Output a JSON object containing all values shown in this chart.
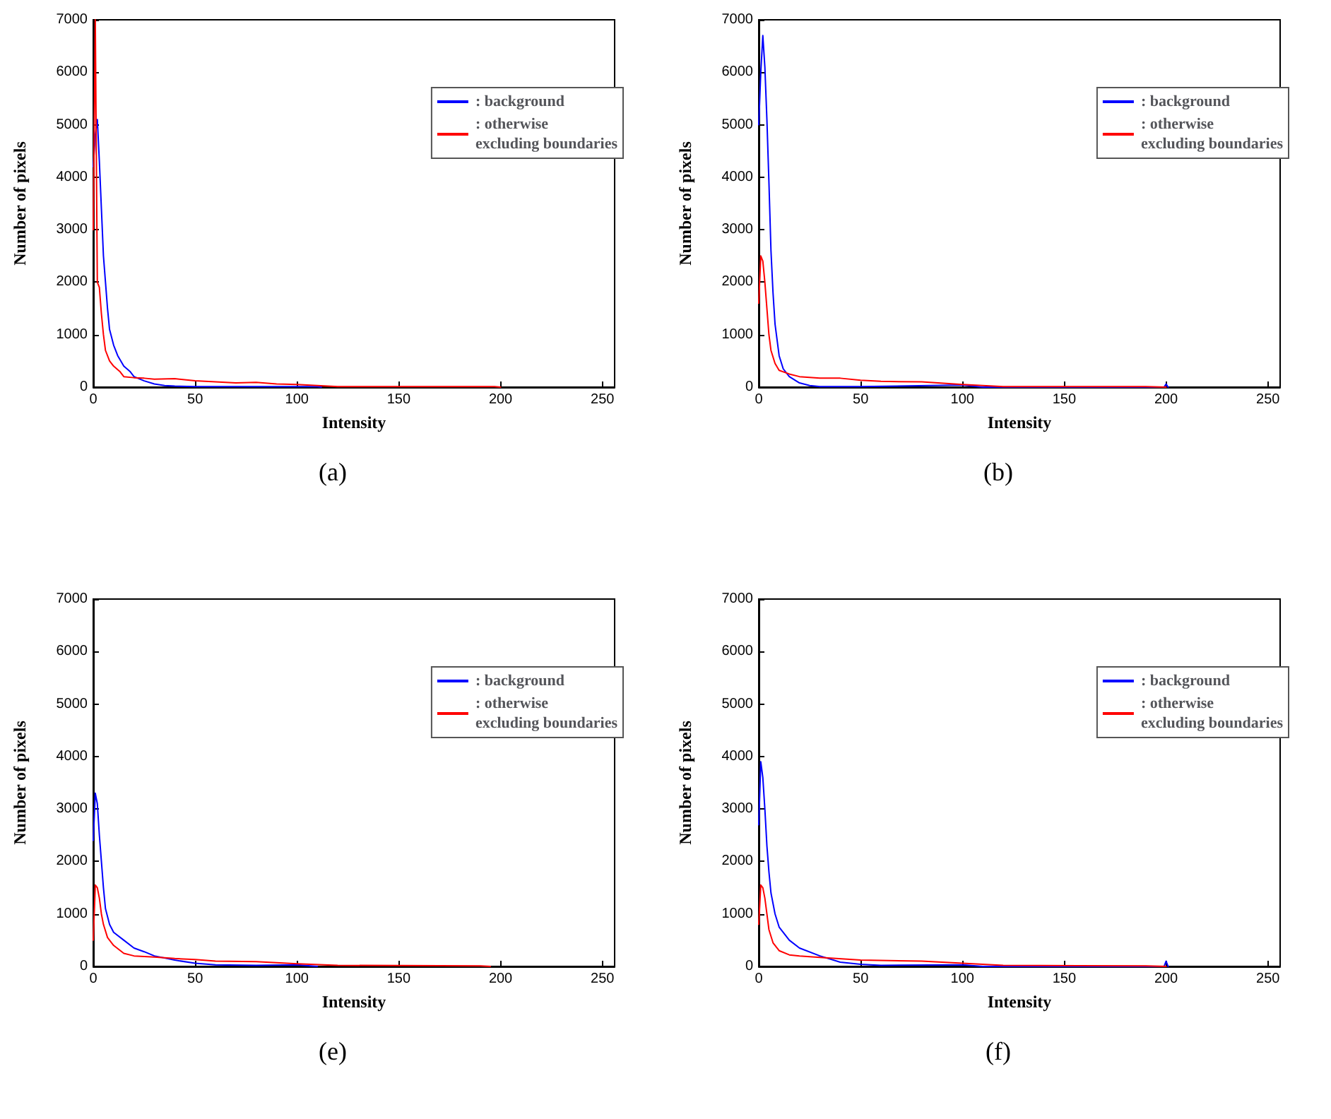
{
  "chart_data": [
    {
      "type": "line",
      "xlabel": "Intensity",
      "ylabel": "Number of pixels",
      "annotations": [
        "(a)"
      ],
      "xlim": [
        0,
        256
      ],
      "ylim": [
        0,
        7000
      ],
      "xticks": [
        0,
        50,
        100,
        150,
        200,
        250
      ],
      "yticks": [
        0,
        1000,
        2000,
        3000,
        4000,
        5000,
        6000,
        7000
      ],
      "grid": false,
      "legend": "top right",
      "marker": "none",
      "line_style": "solid",
      "series": [
        {
          "name": ": background",
          "color": "#0000ff",
          "x": [
            0,
            1,
            2,
            3,
            4,
            5,
            6,
            7,
            8,
            10,
            12,
            15,
            18,
            20,
            25,
            30,
            35,
            40,
            50,
            100,
            110,
            112
          ],
          "values": [
            4200,
            4800,
            5100,
            4300,
            3400,
            2500,
            2000,
            1500,
            1100,
            800,
            600,
            400,
            300,
            200,
            120,
            60,
            30,
            20,
            10,
            10,
            10,
            0
          ]
        },
        {
          "name": ": otherwise\nexcluding boundaries",
          "color": "#ff0000",
          "x": [
            0,
            1,
            2,
            3,
            4,
            5,
            6,
            8,
            10,
            13,
            15,
            20,
            25,
            30,
            40,
            50,
            60,
            70,
            80,
            90,
            100,
            110,
            120,
            150,
            197,
            200
          ],
          "values": [
            3000,
            7000,
            2000,
            1900,
            1400,
            1000,
            700,
            500,
            400,
            300,
            200,
            180,
            170,
            150,
            160,
            120,
            100,
            80,
            90,
            60,
            50,
            30,
            10,
            10,
            10,
            0
          ]
        }
      ]
    },
    {
      "type": "line",
      "xlabel": "Intensity",
      "ylabel": "Number of pixels",
      "annotations": [
        "(b)"
      ],
      "xlim": [
        0,
        256
      ],
      "ylim": [
        0,
        7000
      ],
      "xticks": [
        0,
        50,
        100,
        150,
        200,
        250
      ],
      "yticks": [
        0,
        1000,
        2000,
        3000,
        4000,
        5000,
        6000,
        7000
      ],
      "grid": false,
      "legend": "top right",
      "marker": "none",
      "line_style": "solid",
      "series": [
        {
          "name": ": background",
          "color": "#0000ff",
          "x": [
            0,
            1,
            2,
            3,
            4,
            5,
            6,
            7,
            8,
            10,
            12,
            15,
            20,
            25,
            30,
            50,
            100,
            110,
            199,
            200,
            201
          ],
          "values": [
            5000,
            6000,
            6700,
            6100,
            5100,
            3900,
            2600,
            1800,
            1200,
            600,
            350,
            200,
            80,
            30,
            10,
            10,
            40,
            0,
            0,
            60,
            0
          ]
        },
        {
          "name": ": otherwise\nexcluding boundaries",
          "color": "#ff0000",
          "x": [
            0,
            1,
            2,
            3,
            4,
            5,
            6,
            8,
            10,
            15,
            20,
            30,
            40,
            50,
            60,
            80,
            100,
            120,
            190,
            200
          ],
          "values": [
            1600,
            2500,
            2400,
            2000,
            1500,
            1000,
            700,
            450,
            320,
            250,
            200,
            170,
            170,
            130,
            110,
            100,
            50,
            10,
            10,
            0
          ]
        }
      ]
    },
    {
      "type": "line",
      "xlabel": "Intensity",
      "ylabel": "Number of pixels",
      "annotations": [
        "(e)"
      ],
      "xlim": [
        0,
        256
      ],
      "ylim": [
        0,
        7000
      ],
      "xticks": [
        0,
        50,
        100,
        150,
        200,
        250
      ],
      "yticks": [
        0,
        1000,
        2000,
        3000,
        4000,
        5000,
        6000,
        7000
      ],
      "grid": false,
      "legend": "top right",
      "marker": "none",
      "line_style": "solid",
      "series": [
        {
          "name": ": background",
          "color": "#0000ff",
          "x": [
            0,
            1,
            2,
            3,
            4,
            5,
            6,
            8,
            10,
            15,
            20,
            25,
            30,
            40,
            50,
            60,
            80,
            100,
            110
          ],
          "values": [
            2400,
            3300,
            3100,
            2500,
            2000,
            1500,
            1100,
            800,
            650,
            500,
            350,
            280,
            200,
            120,
            60,
            30,
            20,
            30,
            0
          ]
        },
        {
          "name": ": otherwise\nexcluding boundaries",
          "color": "#ff0000",
          "x": [
            0,
            1,
            2,
            3,
            4,
            5,
            7,
            10,
            15,
            20,
            30,
            40,
            50,
            60,
            80,
            100,
            120,
            190,
            195
          ],
          "values": [
            500,
            1550,
            1500,
            1300,
            1000,
            800,
            550,
            400,
            250,
            200,
            180,
            150,
            130,
            100,
            90,
            50,
            20,
            10,
            0
          ]
        }
      ]
    },
    {
      "type": "line",
      "xlabel": "Intensity",
      "ylabel": "Number of pixels",
      "annotations": [
        "(f)"
      ],
      "xlim": [
        0,
        256
      ],
      "ylim": [
        0,
        7000
      ],
      "xticks": [
        0,
        50,
        100,
        150,
        200,
        250
      ],
      "yticks": [
        0,
        1000,
        2000,
        3000,
        4000,
        5000,
        6000,
        7000
      ],
      "grid": false,
      "legend": "top right",
      "marker": "none",
      "line_style": "solid",
      "series": [
        {
          "name": ": background",
          "color": "#0000ff",
          "x": [
            0,
            1,
            2,
            3,
            4,
            5,
            6,
            8,
            10,
            15,
            20,
            30,
            40,
            50,
            60,
            100,
            110,
            199,
            200,
            201
          ],
          "values": [
            2700,
            3900,
            3600,
            3000,
            2300,
            1800,
            1400,
            1000,
            750,
            500,
            350,
            200,
            80,
            40,
            20,
            30,
            0,
            0,
            100,
            0
          ]
        },
        {
          "name": ": otherwise\nexcluding boundaries",
          "color": "#ff0000",
          "x": [
            0,
            1,
            2,
            3,
            4,
            5,
            7,
            10,
            15,
            20,
            30,
            50,
            80,
            100,
            120,
            190,
            200
          ],
          "values": [
            800,
            1550,
            1500,
            1300,
            1000,
            700,
            450,
            300,
            220,
            200,
            170,
            120,
            100,
            60,
            20,
            10,
            0
          ]
        }
      ]
    }
  ]
}
